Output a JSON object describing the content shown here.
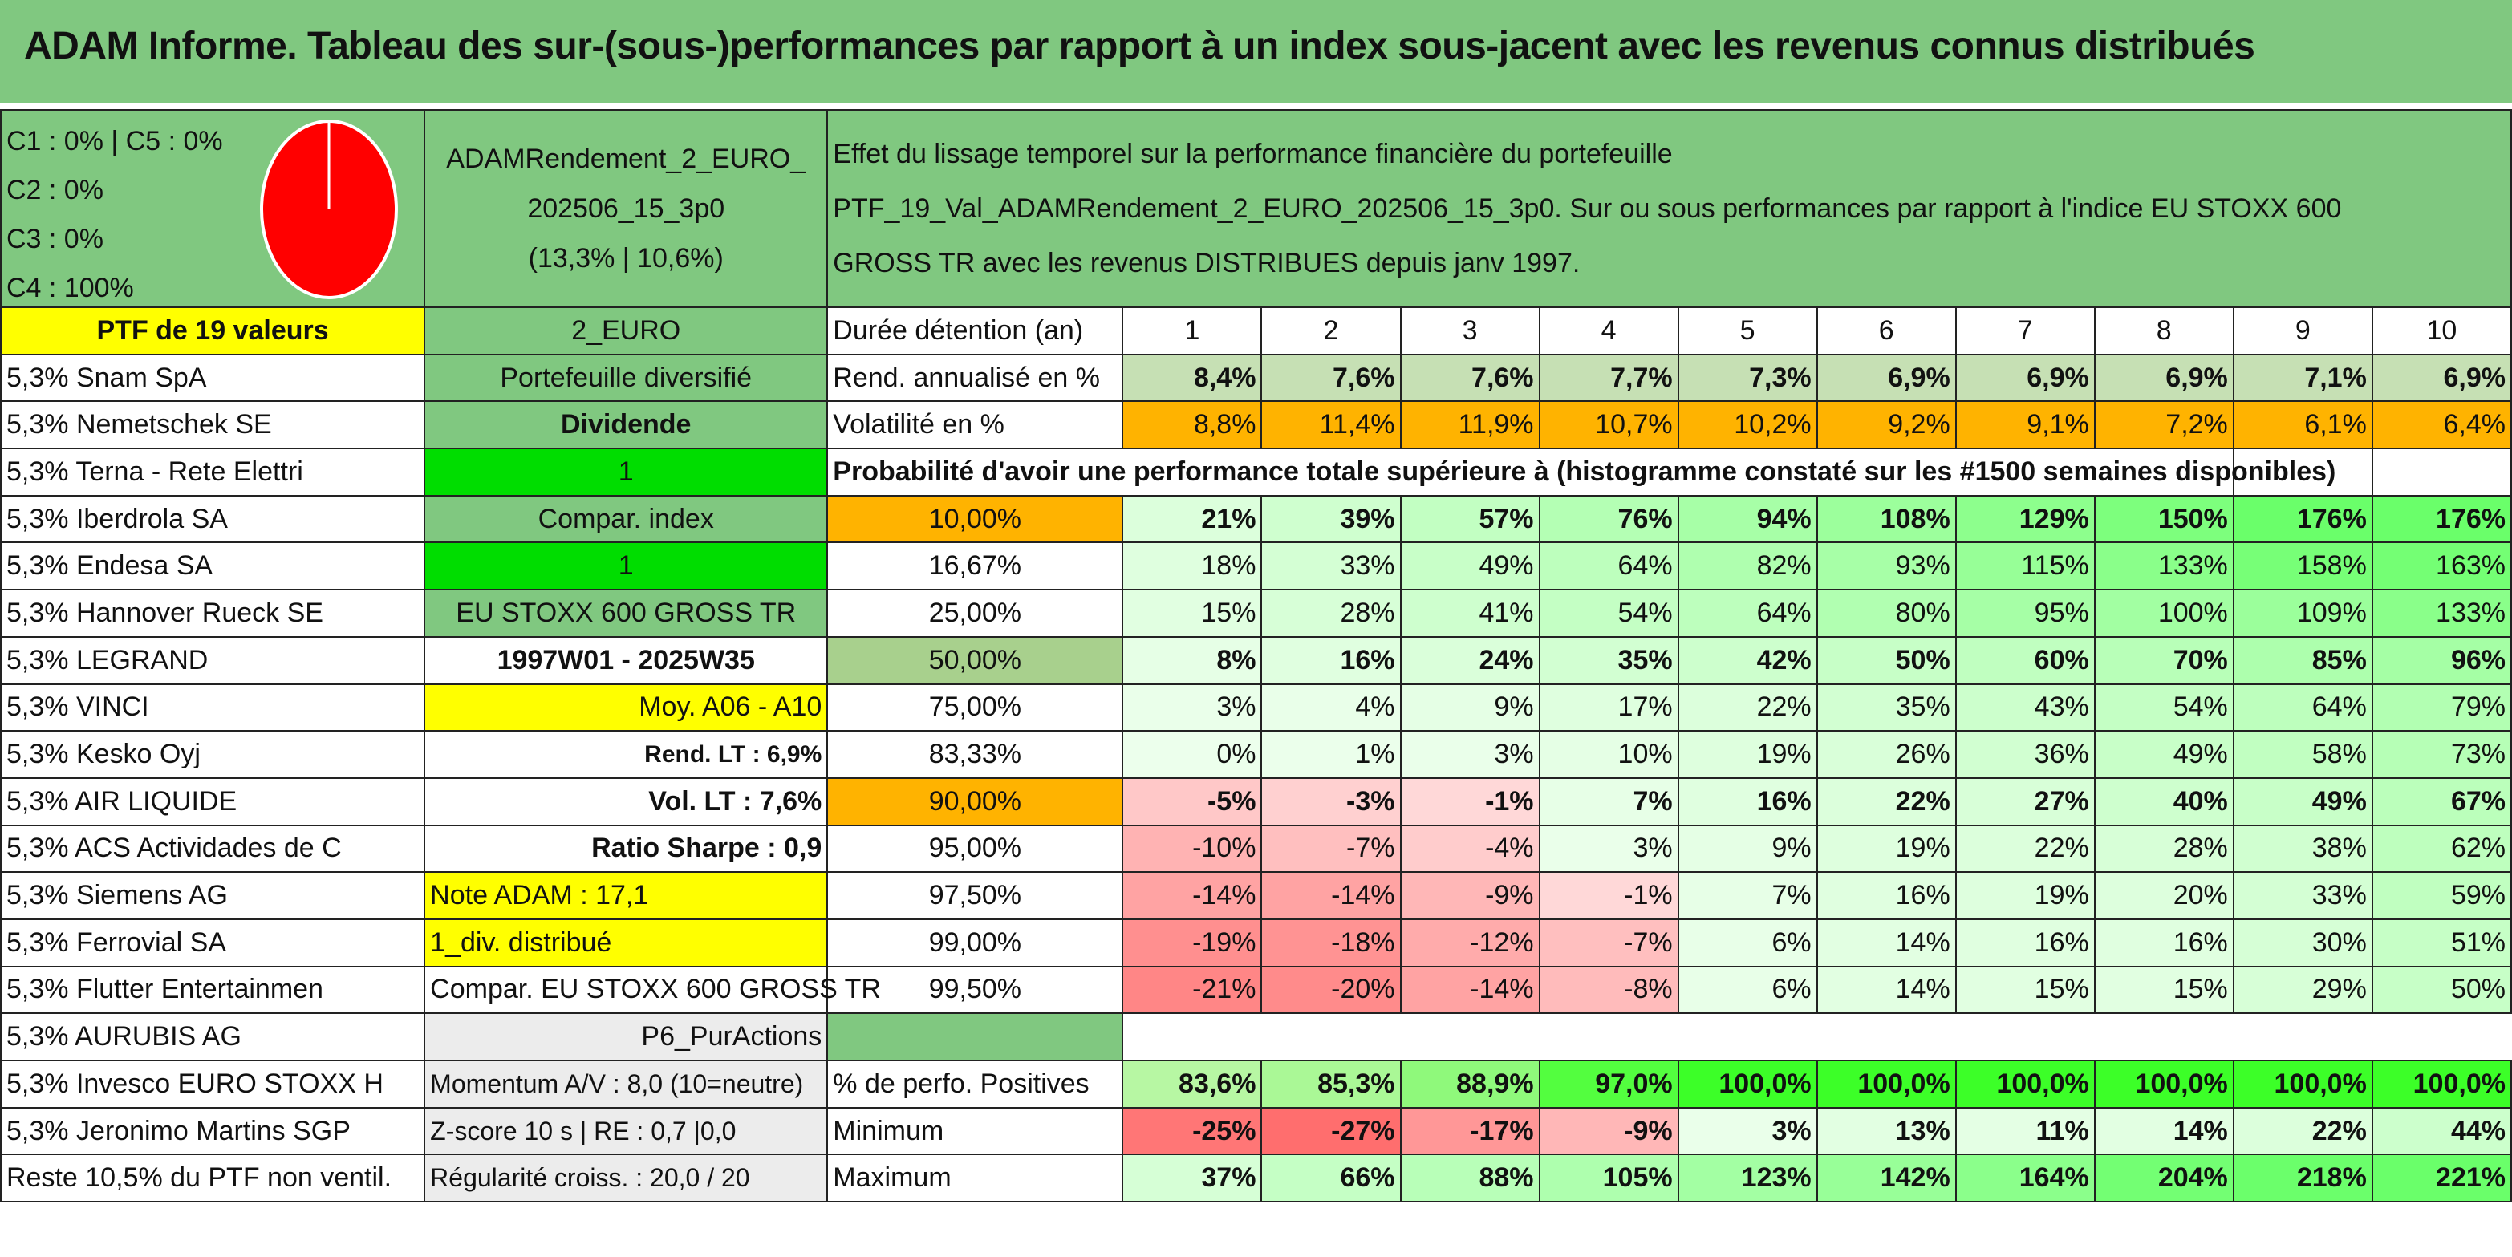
{
  "title": "ADAM Informe. Tableau des sur-(sous-)performances par rapport à un index sous-jacent avec les revenus connus distribués",
  "header": {
    "c_lines": [
      "C1 : 0% | C5 : 0%",
      "C2 : 0%",
      "C3 : 0%",
      "C4 : 100%"
    ],
    "pie_color": "#ff0000",
    "portfolio_name_1": "ADAMRendement_2_EURO_",
    "portfolio_name_2": "202506_15_3p0",
    "portfolio_name_3": "(13,3% | 10,6%)",
    "desc_1": "Effet du lissage temporel sur la performance financière du portefeuille",
    "desc_2": "PTF_19_Val_ADAMRendement_2_EURO_202506_15_3p0. Sur ou sous performances par rapport à l'indice EU STOXX 600",
    "desc_3": "GROSS TR avec les revenus DISTRIBUES depuis janv 1997."
  },
  "holdings_header": "PTF de 19 valeurs",
  "holdings": [
    "5,3% Snam SpA",
    "5,3% Nemetschek SE",
    "5,3% Terna - Rete Elettri",
    "5,3% Iberdrola SA",
    "5,3% Endesa SA",
    "5,3% Hannover Rueck SE",
    "5,3% LEGRAND",
    "5,3% VINCI",
    "5,3% Kesko Oyj",
    "5,3% AIR LIQUIDE",
    "5,3% ACS Actividades de C",
    "5,3% Siemens AG",
    "5,3% Ferrovial SA",
    "5,3% Flutter Entertainmen",
    "5,3% AURUBIS AG",
    "5,3% Invesco EURO STOXX H",
    "5,3% Jeronimo Martins SGP",
    "Reste 10,5% du PTF non ventil."
  ],
  "info": {
    "currency": "2_EURO",
    "type": "Portefeuille diversifié",
    "dividend": "Dividende",
    "val1": "1",
    "compar": "Compar. index",
    "val2": "1",
    "index": "EU STOXX 600 GROSS TR",
    "period": "1997W01 - 2025W35",
    "moy": "Moy. A06 - A10",
    "rend": "Rend. LT : 6,9%",
    "vol": "Vol. LT : 7,6%",
    "sharpe": "Ratio Sharpe : 0,9",
    "note": "Note ADAM : 17,1",
    "div": "1_div. distribué",
    "compar2": "Compar. EU STOXX 600 GROSS TR",
    "p6": "P6_PurActions",
    "momentum": "Momentum A/V : 8,0 (10=neutre)",
    "zscore": "Z-score 10 s | RE : 0,7 |0,0",
    "regularite": "Régularité croiss. : 20,0 / 20"
  },
  "stats": {
    "duree_label": "Durée détention (an)",
    "years": [
      "1",
      "2",
      "3",
      "4",
      "5",
      "6",
      "7",
      "8",
      "9",
      "10"
    ],
    "rend_label": "Rend. annualisé en %",
    "rend": [
      "8,4%",
      "7,6%",
      "7,6%",
      "7,7%",
      "7,3%",
      "6,9%",
      "6,9%",
      "6,9%",
      "7,1%",
      "6,9%"
    ],
    "vol_label": "Volatilité en %",
    "vol": [
      "8,8%",
      "11,4%",
      "11,9%",
      "10,7%",
      "10,2%",
      "9,2%",
      "9,1%",
      "7,2%",
      "6,1%",
      "6,4%"
    ],
    "proba_label": "Probabilité d'avoir une performance totale supérieure à (histogramme constaté sur les #1500 semaines disponibles)",
    "pos_label": "% de perfo. Positives",
    "pos": [
      "83,6%",
      "85,3%",
      "88,9%",
      "97,0%",
      "100,0%",
      "100,0%",
      "100,0%",
      "100,0%",
      "100,0%",
      "100,0%"
    ],
    "min_label": "Minimum",
    "min": [
      "-25%",
      "-27%",
      "-17%",
      "-9%",
      "3%",
      "13%",
      "11%",
      "14%",
      "22%",
      "44%"
    ],
    "max_label": "Maximum",
    "max": [
      "37%",
      "66%",
      "88%",
      "105%",
      "123%",
      "142%",
      "164%",
      "204%",
      "218%",
      "221%"
    ]
  },
  "proba_rows": [
    {
      "p": "10,00%",
      "v": [
        "21%",
        "39%",
        "57%",
        "76%",
        "94%",
        "108%",
        "129%",
        "150%",
        "176%",
        "176%"
      ]
    },
    {
      "p": "16,67%",
      "v": [
        "18%",
        "33%",
        "49%",
        "64%",
        "82%",
        "93%",
        "115%",
        "133%",
        "158%",
        "163%"
      ]
    },
    {
      "p": "25,00%",
      "v": [
        "15%",
        "28%",
        "41%",
        "54%",
        "64%",
        "80%",
        "95%",
        "100%",
        "109%",
        "133%"
      ]
    },
    {
      "p": "50,00%",
      "v": [
        "8%",
        "16%",
        "24%",
        "35%",
        "42%",
        "50%",
        "60%",
        "70%",
        "85%",
        "96%"
      ]
    },
    {
      "p": "75,00%",
      "v": [
        "3%",
        "4%",
        "9%",
        "17%",
        "22%",
        "35%",
        "43%",
        "54%",
        "64%",
        "79%"
      ]
    },
    {
      "p": "83,33%",
      "v": [
        "0%",
        "1%",
        "3%",
        "10%",
        "19%",
        "26%",
        "36%",
        "49%",
        "58%",
        "73%"
      ]
    },
    {
      "p": "90,00%",
      "v": [
        "-5%",
        "-3%",
        "-1%",
        "7%",
        "16%",
        "22%",
        "27%",
        "40%",
        "49%",
        "67%"
      ]
    },
    {
      "p": "95,00%",
      "v": [
        "-10%",
        "-7%",
        "-4%",
        "3%",
        "9%",
        "19%",
        "22%",
        "28%",
        "38%",
        "62%"
      ]
    },
    {
      "p": "97,50%",
      "v": [
        "-14%",
        "-14%",
        "-9%",
        "-1%",
        "7%",
        "16%",
        "19%",
        "20%",
        "33%",
        "59%"
      ]
    },
    {
      "p": "99,00%",
      "v": [
        "-19%",
        "-18%",
        "-12%",
        "-7%",
        "6%",
        "14%",
        "16%",
        "16%",
        "30%",
        "51%"
      ]
    },
    {
      "p": "99,50%",
      "v": [
        "-21%",
        "-20%",
        "-14%",
        "-8%",
        "6%",
        "14%",
        "15%",
        "15%",
        "29%",
        "50%"
      ]
    }
  ]
}
